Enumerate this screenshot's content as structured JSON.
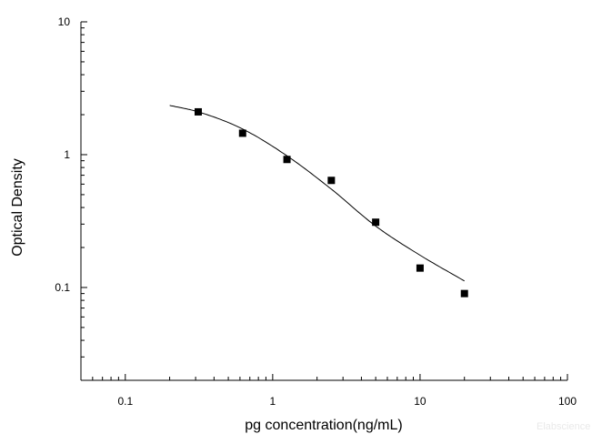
{
  "chart_data": {
    "type": "scatter",
    "title": "",
    "xlabel": "pg concentration(ng/mL)",
    "ylabel": "Optical Density",
    "xscale": "log",
    "yscale": "log",
    "xlim": [
      0.05,
      100
    ],
    "ylim": [
      0.02,
      10
    ],
    "x_tick_labels": [
      "0.1",
      "1",
      "10",
      "100"
    ],
    "y_tick_labels": [
      "0.1",
      "1",
      "10"
    ],
    "grid": false,
    "legend": "none",
    "points": [
      {
        "x": 0.3125,
        "y": 2.1
      },
      {
        "x": 0.625,
        "y": 1.45
      },
      {
        "x": 1.25,
        "y": 0.92
      },
      {
        "x": 2.5,
        "y": 0.64
      },
      {
        "x": 5,
        "y": 0.31
      },
      {
        "x": 10,
        "y": 0.14
      },
      {
        "x": 20,
        "y": 0.09
      }
    ],
    "fit_curve": [
      {
        "x": 0.2,
        "y": 2.35
      },
      {
        "x": 0.3125,
        "y": 2.1
      },
      {
        "x": 0.625,
        "y": 1.56
      },
      {
        "x": 1.25,
        "y": 0.98
      },
      {
        "x": 2.5,
        "y": 0.55
      },
      {
        "x": 5,
        "y": 0.29
      },
      {
        "x": 10,
        "y": 0.175
      },
      {
        "x": 20,
        "y": 0.112
      }
    ],
    "marker_color": "#000000",
    "line_color": "#000000"
  },
  "watermark": "Elabscience"
}
